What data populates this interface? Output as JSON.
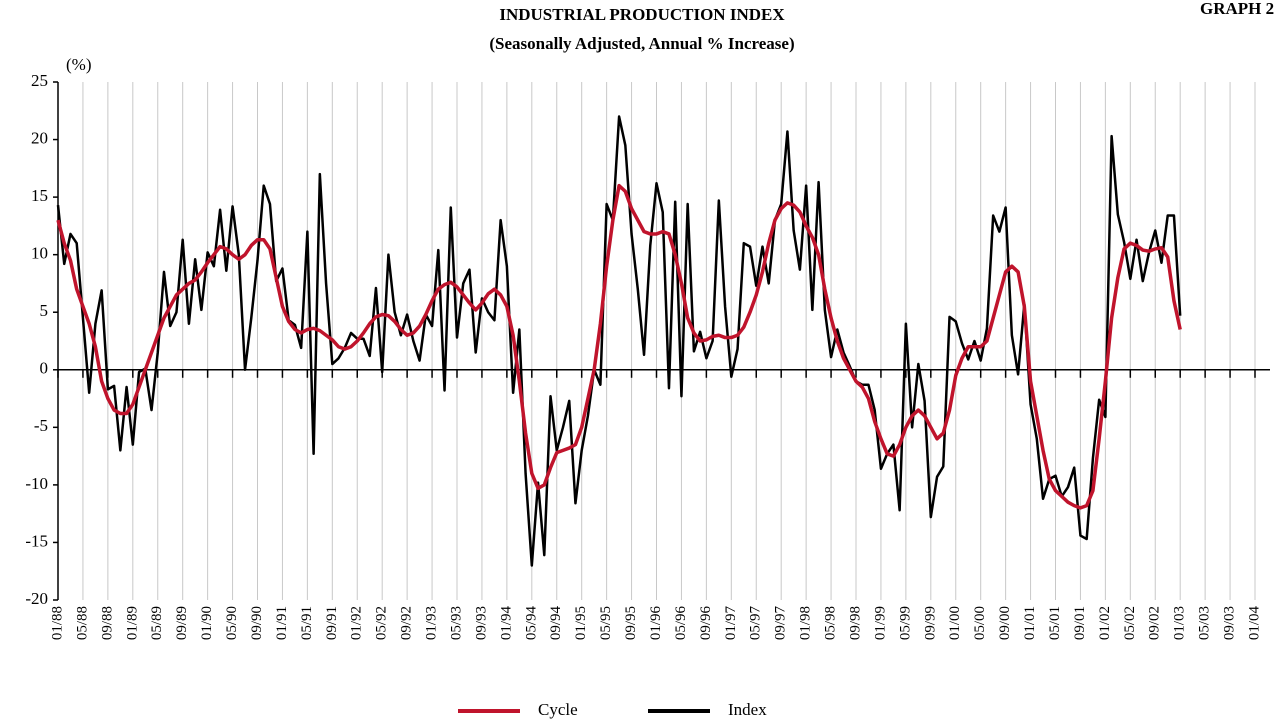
{
  "chart_data": {
    "type": "line",
    "title": "INDUSTRIAL PRODUCTION INDEX",
    "subtitle": "(Seasonally Adjusted, Annual % Increase)",
    "graph_label": "GRAPH 2",
    "y_label": "(%)",
    "categories": [
      "01/88",
      null,
      null,
      null,
      "05/88",
      null,
      null,
      null,
      "09/88",
      null,
      null,
      null,
      "01/89",
      null,
      null,
      null,
      "05/89",
      null,
      null,
      null,
      "09/89",
      null,
      null,
      null,
      "01/90",
      null,
      null,
      null,
      "05/90",
      null,
      null,
      null,
      "09/90",
      null,
      null,
      null,
      "01/91",
      null,
      null,
      null,
      "05/91",
      null,
      null,
      null,
      "09/91",
      null,
      null,
      null,
      "01/92",
      null,
      null,
      null,
      "05/92",
      null,
      null,
      null,
      "09/92",
      null,
      null,
      null,
      "01/93",
      null,
      null,
      null,
      "05/93",
      null,
      null,
      null,
      "09/93",
      null,
      null,
      null,
      "01/94",
      null,
      null,
      null,
      "05/94",
      null,
      null,
      null,
      "09/94",
      null,
      null,
      null,
      "01/95",
      null,
      null,
      null,
      "05/95",
      null,
      null,
      null,
      "09/95",
      null,
      null,
      null,
      "01/96",
      null,
      null,
      null,
      "05/96",
      null,
      null,
      null,
      "09/96",
      null,
      null,
      null,
      "01/97",
      null,
      null,
      null,
      "05/97",
      null,
      null,
      null,
      "09/97",
      null,
      null,
      null,
      "01/98",
      null,
      null,
      null,
      "05/98",
      null,
      null,
      null,
      "09/98",
      null,
      null,
      null,
      "01/99",
      null,
      null,
      null,
      "05/99",
      null,
      null,
      null,
      "09/99",
      null,
      null,
      null,
      "01/00",
      null,
      null,
      null,
      "05/00",
      null,
      null,
      null,
      "09/00",
      null,
      null,
      null,
      "01/01",
      null,
      null,
      null,
      "05/01",
      null,
      null,
      null,
      "09/01",
      null,
      null,
      null,
      "01/02",
      null,
      null,
      null,
      "05/02",
      null,
      null,
      null,
      "09/02",
      null,
      null,
      null,
      "01/03",
      null,
      null,
      null,
      "05/03",
      null,
      null,
      null,
      "09/03",
      null,
      null,
      null,
      "01/04"
    ],
    "series": [
      {
        "name": "Cycle",
        "color": "#c0142c",
        "width": 3.5,
        "values": [
          13.0,
          11.0,
          9.5,
          7.0,
          5.5,
          4.0,
          2.0,
          -1.0,
          -2.5,
          -3.5,
          -3.8,
          -3.8,
          -3.0,
          -1.5,
          0.0,
          1.5,
          3.0,
          4.5,
          5.5,
          6.5,
          7.0,
          7.5,
          7.8,
          8.5,
          9.3,
          10.0,
          10.7,
          10.5,
          10.0,
          9.6,
          10.0,
          10.8,
          11.3,
          11.3,
          10.5,
          8.0,
          5.5,
          4.2,
          3.5,
          3.2,
          3.5,
          3.6,
          3.4,
          3.0,
          2.6,
          2.0,
          1.8,
          2.0,
          2.5,
          3.2,
          4.0,
          4.6,
          4.8,
          4.7,
          4.2,
          3.5,
          3.0,
          3.2,
          3.8,
          4.8,
          6.0,
          7.0,
          7.4,
          7.6,
          7.2,
          6.5,
          5.8,
          5.2,
          5.8,
          6.6,
          7.0,
          6.5,
          5.5,
          3.0,
          -1.0,
          -5.5,
          -9.0,
          -10.3,
          -10.0,
          -8.5,
          -7.2,
          -7.0,
          -6.8,
          -6.5,
          -5.0,
          -2.5,
          0.0,
          4.0,
          9.0,
          13.0,
          16.0,
          15.5,
          14.0,
          13.0,
          12.0,
          11.8,
          11.8,
          12.0,
          11.8,
          10.0,
          7.5,
          4.5,
          3.2,
          2.5,
          2.6,
          2.9,
          3.0,
          2.8,
          2.8,
          3.0,
          3.7,
          5.0,
          6.5,
          8.5,
          11.0,
          13.0,
          14.0,
          14.5,
          14.3,
          13.7,
          12.5,
          11.5,
          10.0,
          7.0,
          4.5,
          2.5,
          1.0,
          0.0,
          -1.0,
          -1.5,
          -2.5,
          -4.5,
          -6.0,
          -7.3,
          -7.5,
          -6.5,
          -5.0,
          -4.0,
          -3.5,
          -4.0,
          -5.0,
          -6.0,
          -5.5,
          -3.5,
          -0.5,
          1.0,
          2.0,
          2.0,
          2.0,
          2.5,
          4.5,
          6.5,
          8.5,
          9.0,
          8.5,
          5.5,
          -1.0,
          -4.0,
          -7.0,
          -9.5,
          -10.5,
          -11.0,
          -11.5,
          -11.8,
          -12.0,
          -11.8,
          -10.5,
          -6.0,
          -1.0,
          4.5,
          8.0,
          10.5,
          11.0,
          10.8,
          10.4,
          10.3,
          10.5,
          10.6,
          9.8,
          6.0,
          3.5,
          null,
          null,
          null,
          null,
          null,
          null,
          null,
          null,
          null,
          null,
          null,
          null
        ]
      },
      {
        "name": "Index",
        "color": "#000000",
        "width": 2.5,
        "values": [
          14.3,
          9.2,
          11.8,
          11.0,
          4.5,
          -2.0,
          4.0,
          6.9,
          -1.7,
          -1.4,
          -7.0,
          -1.5,
          -6.5,
          -0.2,
          0.1,
          -3.5,
          1.5,
          8.5,
          3.8,
          5.0,
          11.3,
          4.0,
          9.6,
          5.2,
          10.2,
          9.0,
          13.9,
          8.6,
          14.2,
          10.0,
          0.0,
          4.5,
          9.5,
          16.0,
          14.4,
          7.7,
          8.8,
          4.3,
          3.9,
          1.9,
          12.0,
          -7.3,
          17.0,
          7.5,
          0.5,
          1.0,
          1.9,
          3.2,
          2.7,
          2.7,
          1.2,
          7.1,
          -0.2,
          10.0,
          5.0,
          3.0,
          4.8,
          2.5,
          0.8,
          4.8,
          3.8,
          10.4,
          -1.8,
          14.1,
          2.8,
          7.5,
          8.7,
          1.5,
          6.2,
          5.0,
          4.3,
          13.0,
          9.0,
          -2.0,
          3.5,
          -9.0,
          -17.0,
          -9.8,
          -16.1,
          -2.3,
          -7.0,
          -5.0,
          -2.7,
          -11.6,
          -7.0,
          -4.0,
          0.0,
          -1.3,
          14.4,
          13.0,
          22.0,
          19.5,
          11.8,
          7.0,
          1.3,
          10.8,
          16.2,
          13.7,
          -1.6,
          14.6,
          -2.3,
          14.4,
          1.6,
          3.3,
          1.0,
          2.5,
          14.7,
          5.5,
          -0.6,
          1.8,
          11.0,
          10.7,
          7.3,
          10.7,
          7.5,
          13.0,
          14.4,
          20.7,
          12.1,
          8.7,
          16.0,
          5.2,
          16.3,
          5.2,
          1.1,
          3.5,
          1.5,
          0.3,
          -1.0,
          -1.3,
          -1.3,
          -3.5,
          -8.6,
          -7.3,
          -6.5,
          -12.2,
          4.0,
          -5.0,
          0.5,
          -2.7,
          -12.8,
          -9.3,
          -8.4,
          4.6,
          4.2,
          2.3,
          0.9,
          2.5,
          0.8,
          3.6,
          13.4,
          12.0,
          14.1,
          3.0,
          -0.4,
          5.7,
          -3.0,
          -6.0,
          -11.2,
          -9.5,
          -9.2,
          -11.0,
          -10.2,
          -8.5,
          -14.4,
          -14.7,
          -7.7,
          -2.6,
          -4.1,
          20.3,
          13.5,
          11.1,
          7.9,
          11.3,
          7.7,
          10.2,
          12.1,
          9.3,
          13.4,
          13.4,
          4.7,
          null,
          null,
          null,
          null,
          null,
          null,
          null,
          null,
          null,
          null,
          null,
          null
        ]
      }
    ],
    "ylim": [
      -20,
      25
    ],
    "yticks": [
      -20,
      -15,
      -10,
      -5,
      0,
      5,
      10,
      15,
      20,
      25
    ],
    "grid": true,
    "legend": "bottom"
  }
}
